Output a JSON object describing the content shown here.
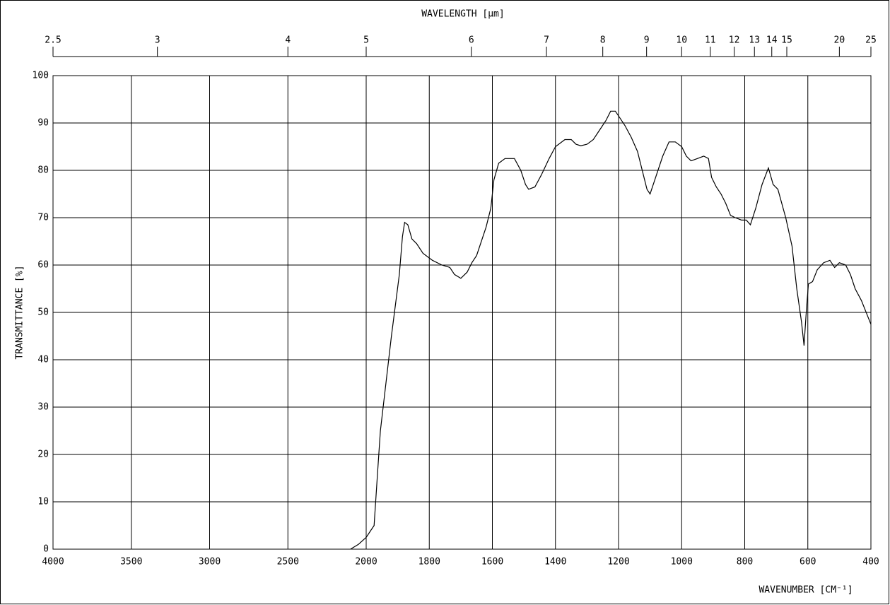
{
  "chart_data": {
    "type": "line",
    "title": "WAVELENGTH [μm]",
    "x_label": "WAVENUMBER [CM⁻¹]",
    "y_label": "TRANSMITTANCE [%]",
    "xlim": [
      4000,
      400
    ],
    "xbreak": 2000,
    "ylim": [
      0,
      100
    ],
    "xticks": [
      4000,
      3500,
      3000,
      2500,
      2000,
      1800,
      1600,
      1400,
      1200,
      1000,
      800,
      600,
      400
    ],
    "yticks": [
      0,
      10,
      20,
      30,
      40,
      50,
      60,
      70,
      80,
      90,
      100
    ],
    "x2ticks": [
      2.5,
      3,
      4,
      5,
      6,
      7,
      8,
      9,
      10,
      11,
      12,
      13,
      14,
      15,
      20,
      25
    ],
    "grid": true,
    "x": [
      2100,
      2050,
      2000,
      1975,
      1965,
      1955,
      1920,
      1895,
      1885,
      1878,
      1868,
      1855,
      1840,
      1820,
      1790,
      1760,
      1735,
      1720,
      1700,
      1680,
      1665,
      1650,
      1620,
      1605,
      1595,
      1580,
      1560,
      1530,
      1510,
      1495,
      1485,
      1465,
      1445,
      1420,
      1400,
      1370,
      1350,
      1335,
      1320,
      1300,
      1280,
      1260,
      1240,
      1225,
      1210,
      1195,
      1180,
      1160,
      1140,
      1125,
      1110,
      1100,
      1085,
      1060,
      1040,
      1020,
      1000,
      985,
      970,
      950,
      930,
      915,
      905,
      890,
      875,
      860,
      845,
      830,
      810,
      795,
      782,
      765,
      745,
      725,
      710,
      695,
      670,
      650,
      635,
      620,
      612,
      605,
      598,
      585,
      570,
      550,
      530,
      515,
      500,
      480,
      465,
      450,
      430,
      400
    ],
    "series": [
      {
        "color": "#000000",
        "values": [
          0,
          1,
          2.5,
          5,
          15,
          25,
          45,
          58,
          66,
          69,
          68.5,
          65.5,
          64.5,
          62.5,
          61,
          60,
          59.5,
          58,
          57.2,
          58.5,
          60.5,
          62,
          68,
          72,
          78,
          81.5,
          82.5,
          82.5,
          80,
          77,
          76,
          76.5,
          79,
          82.5,
          85,
          86.5,
          86.5,
          85.5,
          85.2,
          85.5,
          86.5,
          88.5,
          90.5,
          92.5,
          92.5,
          91,
          89.5,
          87,
          84,
          80,
          76,
          75,
          78,
          83,
          86,
          86,
          85,
          83,
          82,
          82.5,
          83,
          82.5,
          78.5,
          76.5,
          75,
          73,
          70.5,
          70,
          69.5,
          69.5,
          68.5,
          72,
          77,
          80.5,
          77,
          76,
          70,
          64,
          55,
          48,
          43,
          50,
          56,
          56.5,
          59,
          60.5,
          61,
          59.5,
          60.5,
          60,
          58,
          55,
          52.5,
          47.5
        ]
      }
    ]
  }
}
